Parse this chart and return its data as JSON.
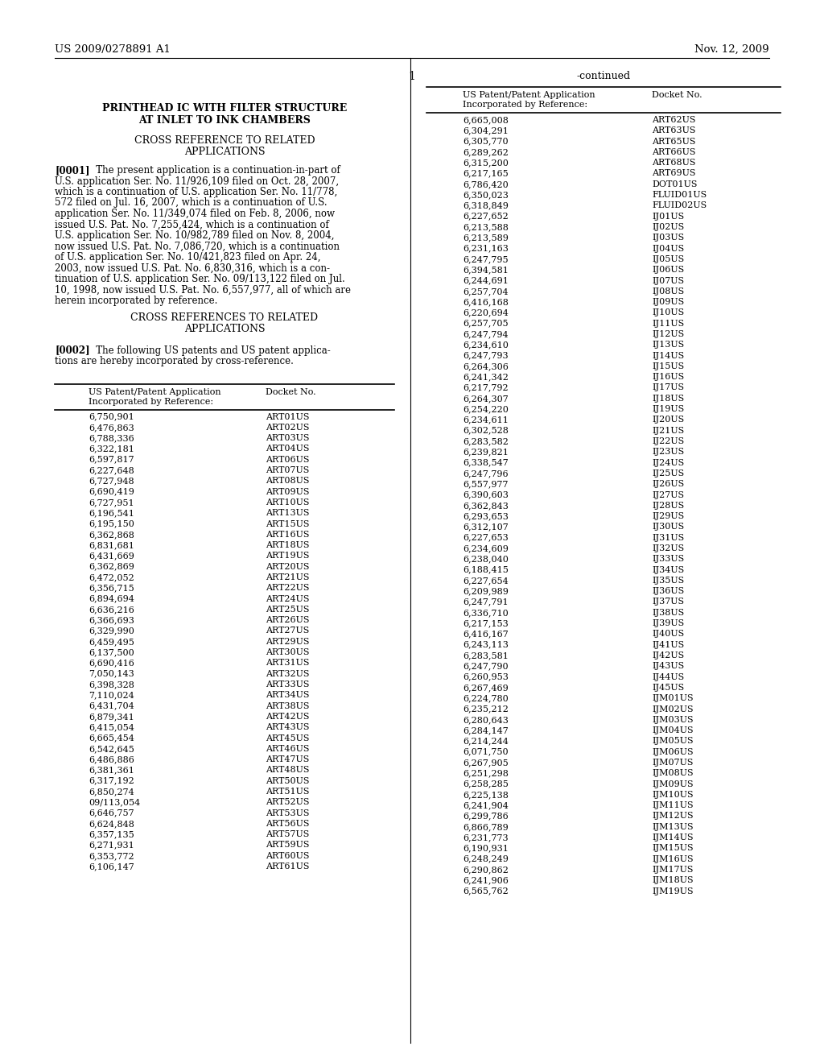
{
  "header_left": "US 2009/0278891 A1",
  "header_right": "Nov. 12, 2009",
  "page_number": "1",
  "title_line1": "PRINTHEAD IC WITH FILTER STRUCTURE",
  "title_line2": "AT INLET TO INK CHAMBERS",
  "table_left_data": [
    "6,750,901",
    "6,476,863",
    "6,788,336",
    "6,322,181",
    "6,597,817",
    "6,227,648",
    "6,727,948",
    "6,690,419",
    "6,727,951",
    "6,196,541",
    "6,195,150",
    "6,362,868",
    "6,831,681",
    "6,431,669",
    "6,362,869",
    "6,472,052",
    "6,356,715",
    "6,894,694",
    "6,636,216",
    "6,366,693",
    "6,329,990",
    "6,459,495",
    "6,137,500",
    "6,690,416",
    "7,050,143",
    "6,398,328",
    "7,110,024",
    "6,431,704",
    "6,879,341",
    "6,415,054",
    "6,665,454",
    "6,542,645",
    "6,486,886",
    "6,381,361",
    "6,317,192",
    "6,850,274",
    "09/113,054",
    "6,646,757",
    "6,624,848",
    "6,357,135",
    "6,271,931",
    "6,353,772",
    "6,106,147"
  ],
  "table_right_data": [
    "ART01US",
    "ART02US",
    "ART03US",
    "ART04US",
    "ART06US",
    "ART07US",
    "ART08US",
    "ART09US",
    "ART10US",
    "ART13US",
    "ART15US",
    "ART16US",
    "ART18US",
    "ART19US",
    "ART20US",
    "ART21US",
    "ART22US",
    "ART24US",
    "ART25US",
    "ART26US",
    "ART27US",
    "ART29US",
    "ART30US",
    "ART31US",
    "ART32US",
    "ART33US",
    "ART34US",
    "ART38US",
    "ART42US",
    "ART43US",
    "ART45US",
    "ART46US",
    "ART47US",
    "ART48US",
    "ART50US",
    "ART51US",
    "ART52US",
    "ART53US",
    "ART56US",
    "ART57US",
    "ART59US",
    "ART60US",
    "ART61US"
  ],
  "right_left_data": [
    "6,665,008",
    "6,304,291",
    "6,305,770",
    "6,289,262",
    "6,315,200",
    "6,217,165",
    "6,786,420",
    "6,350,023",
    "6,318,849",
    "6,227,652",
    "6,213,588",
    "6,213,589",
    "6,231,163",
    "6,247,795",
    "6,394,581",
    "6,244,691",
    "6,257,704",
    "6,416,168",
    "6,220,694",
    "6,257,705",
    "6,247,794",
    "6,234,610",
    "6,247,793",
    "6,264,306",
    "6,241,342",
    "6,217,792",
    "6,264,307",
    "6,254,220",
    "6,234,611",
    "6,302,528",
    "6,283,582",
    "6,239,821",
    "6,338,547",
    "6,247,796",
    "6,557,977",
    "6,390,603",
    "6,362,843",
    "6,293,653",
    "6,312,107",
    "6,227,653",
    "6,234,609",
    "6,238,040",
    "6,188,415",
    "6,227,654",
    "6,209,989",
    "6,247,791",
    "6,336,710",
    "6,217,153",
    "6,416,167",
    "6,243,113",
    "6,283,581",
    "6,247,790",
    "6,260,953",
    "6,267,469",
    "6,224,780",
    "6,235,212",
    "6,280,643",
    "6,284,147",
    "6,214,244",
    "6,071,750",
    "6,267,905",
    "6,251,298",
    "6,258,285",
    "6,225,138",
    "6,241,904",
    "6,299,786",
    "6,866,789",
    "6,231,773",
    "6,190,931",
    "6,248,249",
    "6,290,862",
    "6,241,906",
    "6,565,762"
  ],
  "right_right_data": [
    "ART62US",
    "ART63US",
    "ART65US",
    "ART66US",
    "ART68US",
    "ART69US",
    "DOT01US",
    "FLUID01US",
    "FLUID02US",
    "IJ01US",
    "IJ02US",
    "IJ03US",
    "IJ04US",
    "IJ05US",
    "IJ06US",
    "IJ07US",
    "IJ08US",
    "IJ09US",
    "IJ10US",
    "IJ11US",
    "IJ12US",
    "IJ13US",
    "IJ14US",
    "IJ15US",
    "IJ16US",
    "IJ17US",
    "IJ18US",
    "IJ19US",
    "IJ20US",
    "IJ21US",
    "IJ22US",
    "IJ23US",
    "IJ24US",
    "IJ25US",
    "IJ26US",
    "IJ27US",
    "IJ28US",
    "IJ29US",
    "IJ30US",
    "IJ31US",
    "IJ32US",
    "IJ33US",
    "IJ34US",
    "IJ35US",
    "IJ36US",
    "IJ37US",
    "IJ38US",
    "IJ39US",
    "IJ40US",
    "IJ41US",
    "IJ42US",
    "IJ43US",
    "IJ44US",
    "IJ45US",
    "IJM01US",
    "IJM02US",
    "IJM03US",
    "IJM04US",
    "IJM05US",
    "IJM06US",
    "IJM07US",
    "IJM08US",
    "IJM09US",
    "IJM10US",
    "IJM11US",
    "IJM12US",
    "IJM13US",
    "IJM14US",
    "IJM15US",
    "IJM16US",
    "IJM17US",
    "IJM18US",
    "IJM19US"
  ],
  "bg_color": "#ffffff"
}
